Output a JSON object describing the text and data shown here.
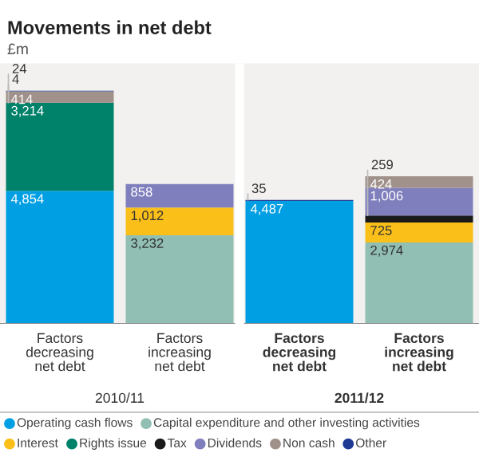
{
  "chart_data": {
    "type": "bar",
    "stacked": true,
    "title": "Movements in net debt",
    "subtitle": "£m",
    "categories": [
      "Factors decreasing net debt",
      "Factors increasing net debt",
      "Factors decreasing net debt",
      "Factors increasing net debt"
    ],
    "series": [
      {
        "name": "Operating cash flows",
        "color": "#009fe3",
        "values": [
          4854,
          null,
          4487,
          null
        ],
        "value_labels": [
          "4,854",
          null,
          "4,487",
          null
        ]
      },
      {
        "name": "Capital expenditure and other investing activities",
        "color": "#92bfb3",
        "values": [
          null,
          3232,
          null,
          2974
        ],
        "value_labels": [
          null,
          "3,232",
          null,
          "2,974"
        ]
      },
      {
        "name": "Interest",
        "color": "#fbbf1a",
        "values": [
          null,
          1012,
          null,
          725
        ],
        "value_labels": [
          null,
          "1,012",
          null,
          "725"
        ]
      },
      {
        "name": "Rights issue",
        "color": "#00816a",
        "values": [
          3214,
          null,
          null,
          null
        ],
        "value_labels": [
          "3,214",
          null,
          null,
          null
        ]
      },
      {
        "name": "Tax",
        "color": "#1a1a1a",
        "values": [
          4,
          null,
          null,
          259
        ],
        "value_labels": [
          "4",
          null,
          null,
          "259"
        ]
      },
      {
        "name": "Dividends",
        "color": "#7f7fbd",
        "values": [
          null,
          858,
          null,
          1006
        ],
        "value_labels": [
          null,
          "858",
          null,
          "1,006"
        ]
      },
      {
        "name": "Non cash",
        "color": "#a0918a",
        "values": [
          414,
          null,
          null,
          424
        ],
        "value_labels": [
          "414",
          null,
          null,
          "424"
        ]
      },
      {
        "name": "Other",
        "color": "#1f3a93",
        "values": [
          24,
          null,
          35,
          null
        ],
        "value_labels": [
          "24",
          null,
          "35",
          null
        ]
      }
    ],
    "annotations": [
      "2010/11",
      "2011/12"
    ],
    "legend": "bottom"
  }
}
